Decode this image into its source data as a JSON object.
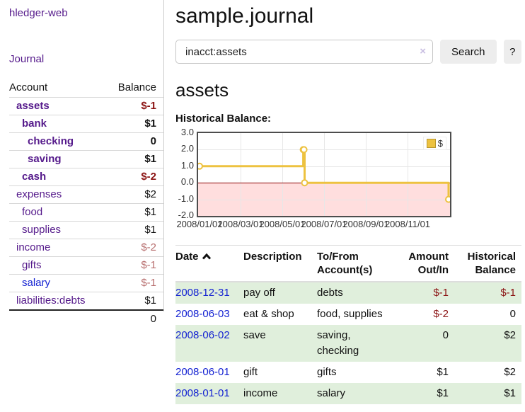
{
  "app": {
    "title": "hledger-web"
  },
  "nav": {
    "journal": "Journal"
  },
  "sidebar": {
    "header": {
      "account": "Account",
      "balance": "Balance"
    },
    "accounts": [
      {
        "name": "assets",
        "balance": "$-1"
      },
      {
        "name": "bank",
        "balance": "$1"
      },
      {
        "name": "checking",
        "balance": "0"
      },
      {
        "name": "saving",
        "balance": "$1"
      },
      {
        "name": "cash",
        "balance": "$-2"
      },
      {
        "name": "expenses",
        "balance": "$2"
      },
      {
        "name": "food",
        "balance": "$1"
      },
      {
        "name": "supplies",
        "balance": "$1"
      },
      {
        "name": "income",
        "balance": "$-2"
      },
      {
        "name": "gifts",
        "balance": "$-1"
      },
      {
        "name": "salary",
        "balance": "$-1"
      },
      {
        "name": "liabilities:debts",
        "balance": "$1"
      }
    ],
    "total": "0"
  },
  "main": {
    "title": "sample.journal",
    "search": {
      "value": "inacct:assets",
      "clear_icon": "×",
      "search_button": "Search",
      "help_button": "?"
    },
    "heading": "assets"
  },
  "chart_data": {
    "type": "line",
    "step": true,
    "title": "Historical Balance:",
    "series": [
      {
        "name": "$",
        "color": "#EDC240",
        "points": [
          [
            "2008-01-01",
            1
          ],
          [
            "2008-06-01",
            2
          ],
          [
            "2008-06-02",
            2
          ],
          [
            "2008-06-03",
            0
          ],
          [
            "2008-12-31",
            -1
          ]
        ]
      }
    ],
    "xrange": [
      "2008-01-01",
      "2008-12-31"
    ],
    "ylim": [
      -2,
      3
    ],
    "yticks": [
      "3.0",
      "2.0",
      "1.0",
      "0.0",
      "-1.0",
      "-2.0"
    ],
    "xticks": [
      "2008/01/01",
      "2008/03/01",
      "2008/05/01",
      "2008/07/01",
      "2008/09/01",
      "2008/11/01"
    ],
    "grid": true,
    "legend": {
      "position": "top-right",
      "label": "$"
    },
    "negative_fill": "#ffdede",
    "zero_line_color": "#8b0000"
  },
  "register": {
    "headers": {
      "date": "Date",
      "description": "Description",
      "accounts": "To/From Account(s)",
      "amount": "Amount Out/In",
      "balance": "Historical Balance"
    },
    "sort": {
      "column": "date",
      "direction": "ascending"
    },
    "rows": [
      {
        "date": "2008-12-31",
        "description": "pay off",
        "accounts": "debts",
        "amount": "$-1",
        "balance": "$-1"
      },
      {
        "date": "2008-06-03",
        "description": "eat & shop",
        "accounts": "food, supplies",
        "amount": "$-2",
        "balance": "0"
      },
      {
        "date": "2008-06-02",
        "description": "save",
        "accounts": "saving, checking",
        "amount": "0",
        "balance": "$2"
      },
      {
        "date": "2008-06-01",
        "description": "gift",
        "accounts": "gifts",
        "amount": "$1",
        "balance": "$2"
      },
      {
        "date": "2008-01-01",
        "description": "income",
        "accounts": "salary",
        "amount": "$1",
        "balance": "$1"
      }
    ]
  }
}
